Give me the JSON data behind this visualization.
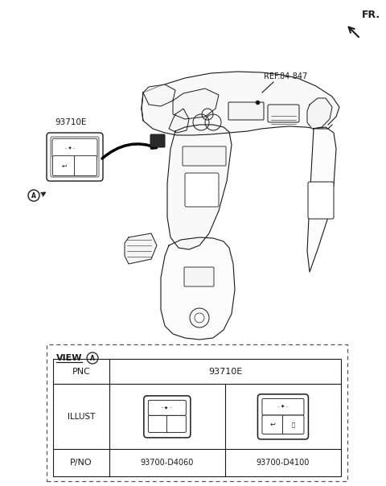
{
  "bg_color": "#ffffff",
  "line_color": "#1a1a1a",
  "gray_fill": "#f5f5f5",
  "fr_label": "FR.",
  "ref_label": "REF.84-847",
  "part_label": "93710E",
  "view_label": "VIEW",
  "pnc_label": "PNC",
  "pnc_value": "93710E",
  "illust_label": "ILLUST",
  "pno_label": "P/NO",
  "pno1": "93700-D4060",
  "pno2": "93700-D4100",
  "circle_A_label": "A"
}
